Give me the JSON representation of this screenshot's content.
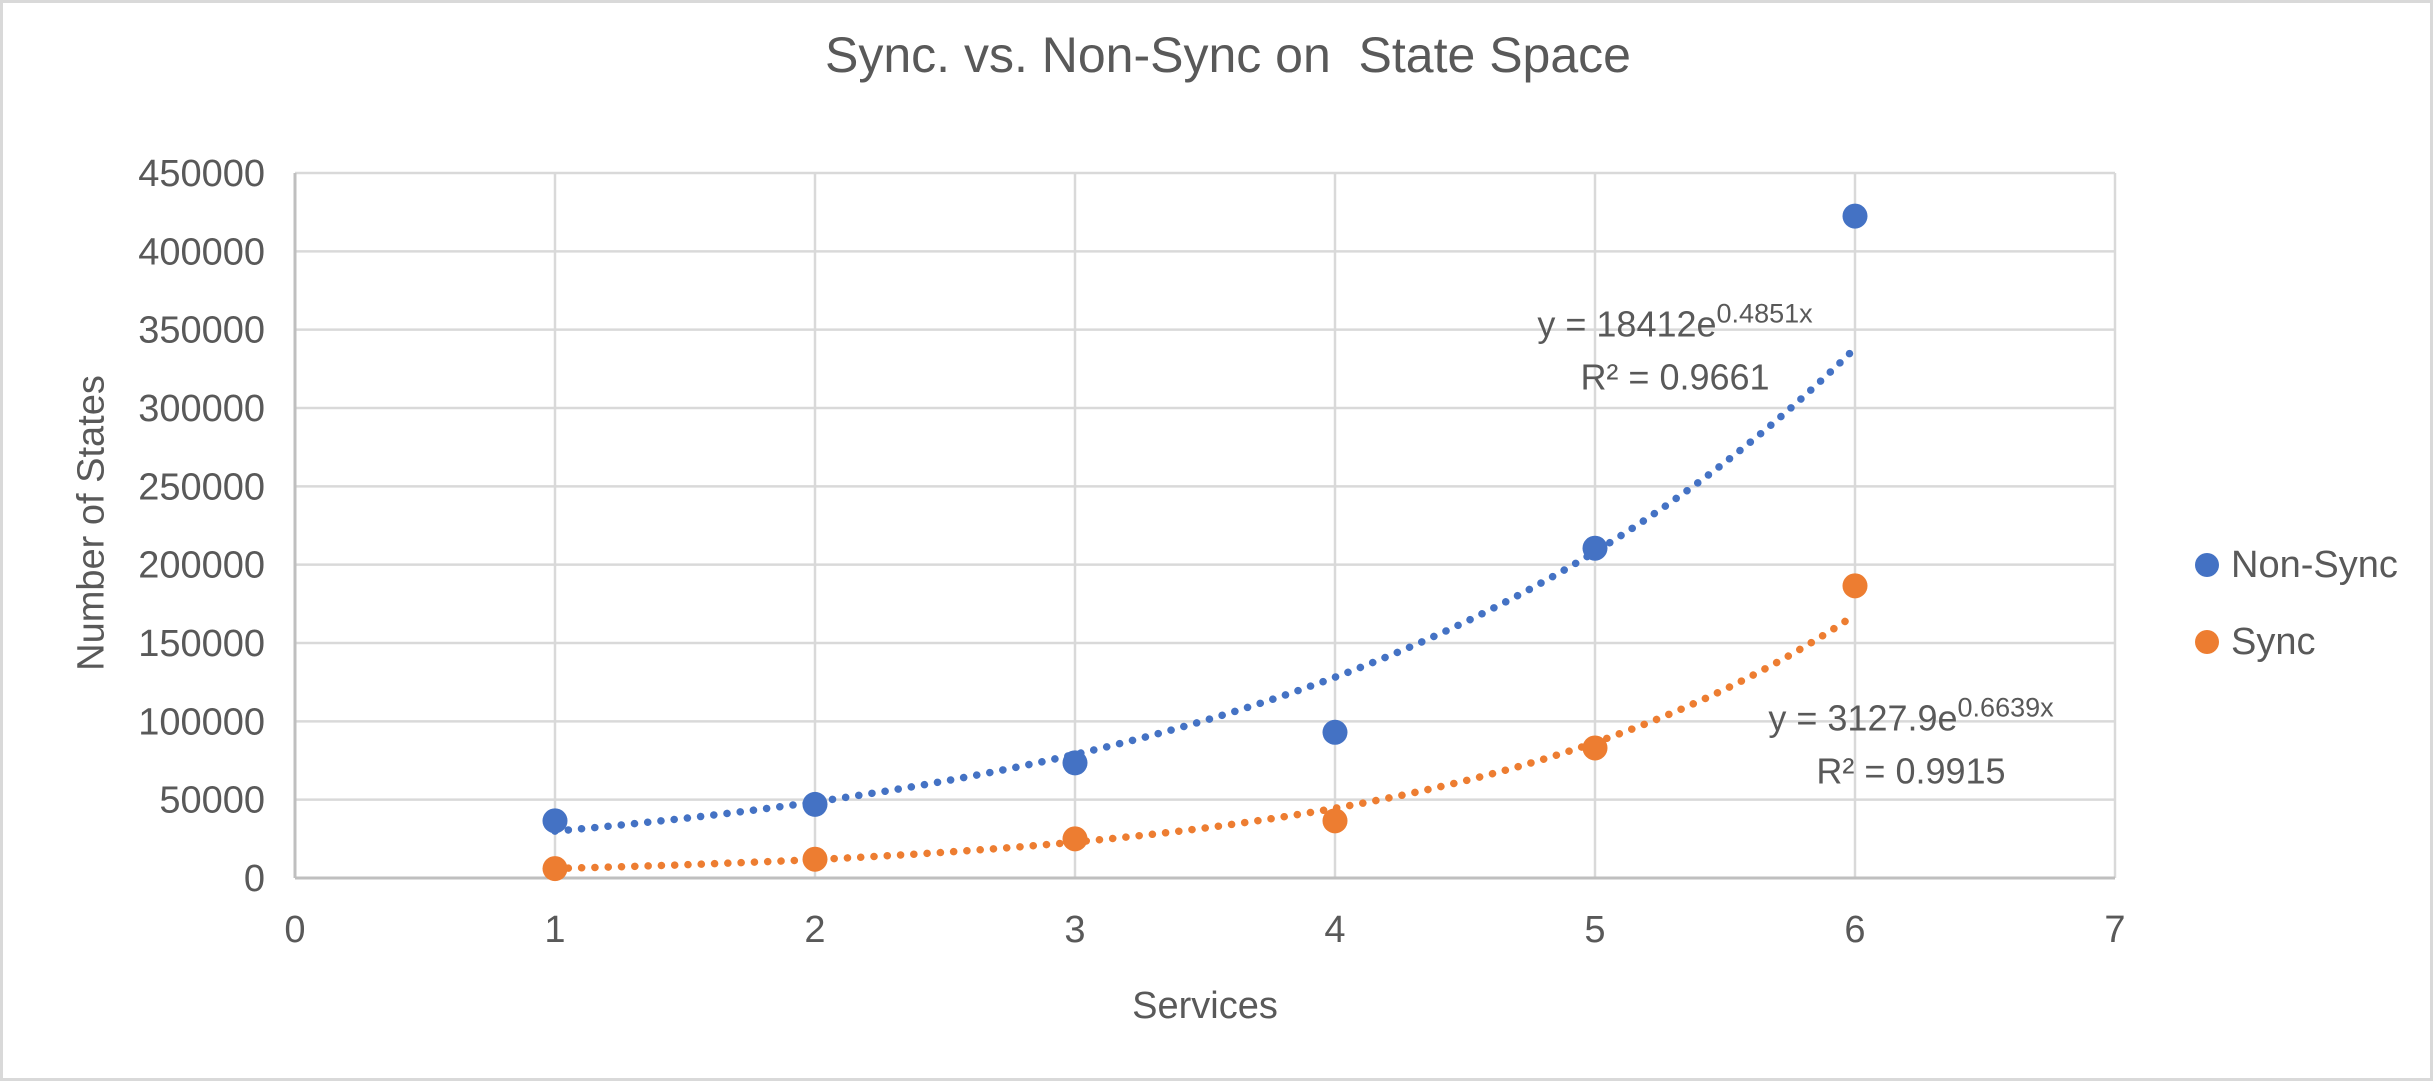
{
  "chart_data": {
    "type": "scatter",
    "title": "Sync. vs. Non-Sync on  State Space",
    "xlabel": "Services",
    "ylabel": "Number of States",
    "xlim": [
      0,
      7
    ],
    "ylim": [
      0,
      450000
    ],
    "xticks": [
      0,
      1,
      2,
      3,
      4,
      5,
      6,
      7
    ],
    "yticks": [
      0,
      50000,
      100000,
      150000,
      200000,
      250000,
      300000,
      350000,
      400000,
      450000
    ],
    "grid": true,
    "legend_position": "right-center",
    "series": [
      {
        "name": "Non-Sync",
        "color": "#4472C4",
        "x": [
          1,
          2,
          3,
          4,
          5,
          6
        ],
        "y": [
          36500,
          47000,
          73500,
          93000,
          210500,
          422500
        ],
        "trendline": {
          "type": "exponential",
          "a": 18412,
          "b": 0.4851,
          "x_start": 1,
          "x_end": 6,
          "equation_base": "y = 18412e",
          "equation_exponent": "0.4851x",
          "r2": "R² = 0.9661"
        }
      },
      {
        "name": "Sync",
        "color": "#ED7D31",
        "x": [
          1,
          2,
          3,
          4,
          5,
          6
        ],
        "y": [
          6000,
          12000,
          25000,
          36500,
          83000,
          186500
        ],
        "trendline": {
          "type": "exponential",
          "a": 3127.9,
          "b": 0.6639,
          "x_start": 1,
          "x_end": 6,
          "equation_base": "y = 3127.9e",
          "equation_exponent": "0.6639x",
          "r2": "R² = 0.9915"
        }
      }
    ],
    "colors": {
      "text": "#595959",
      "gridline": "#D9D9D9",
      "axis": "#BFBFBF",
      "background": "#FFFFFF",
      "frame_border": "#D9D9D9"
    }
  }
}
